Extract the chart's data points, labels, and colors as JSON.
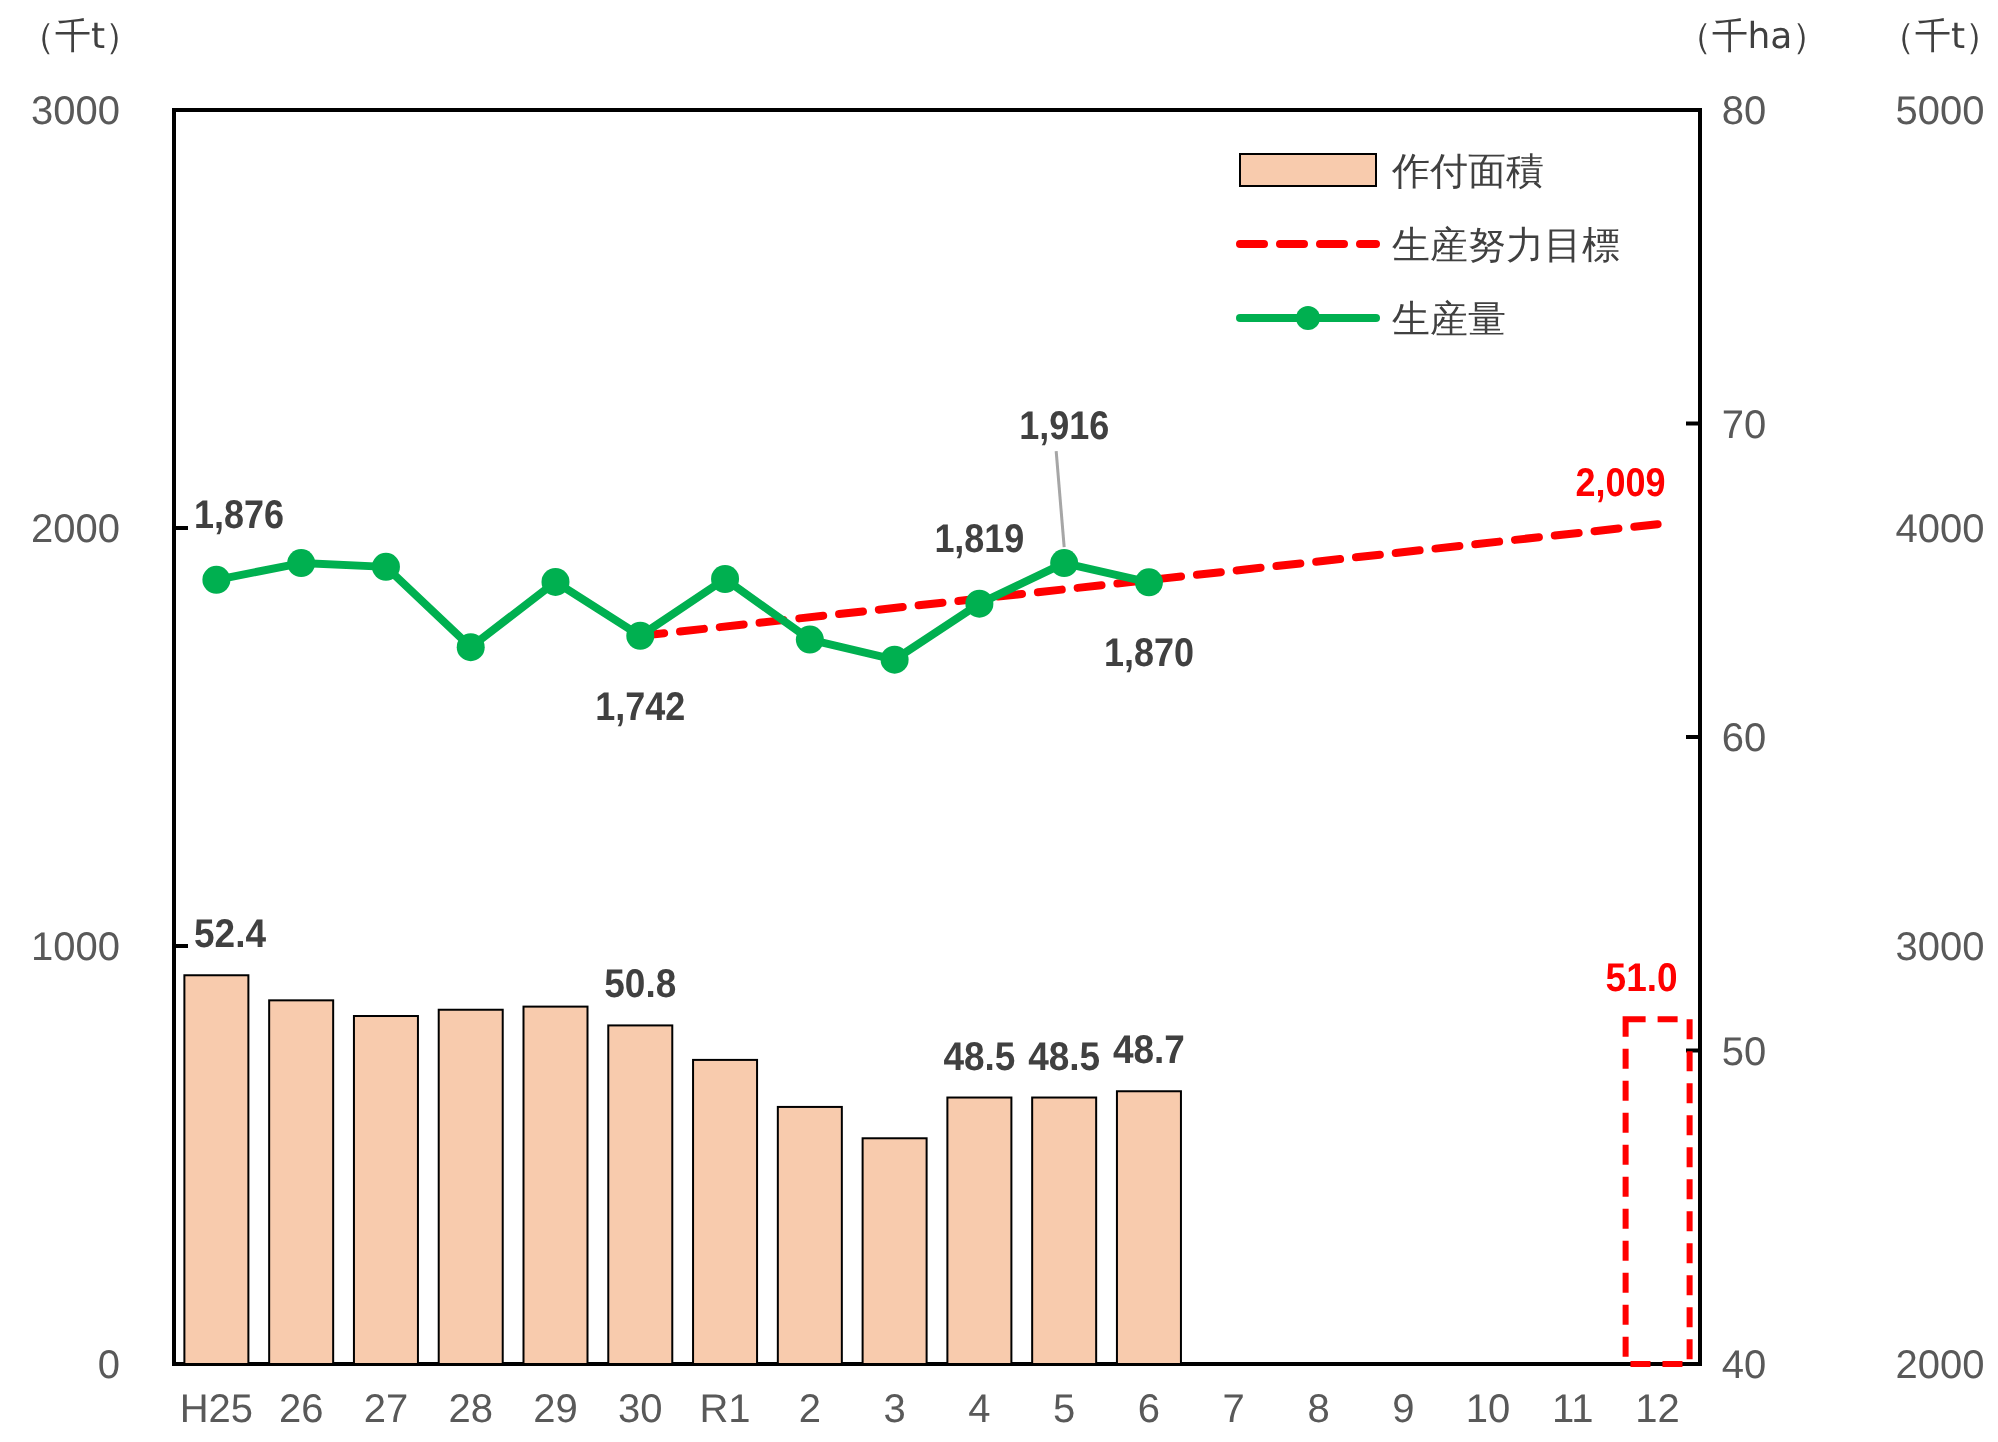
{
  "chart_data": {
    "type": "bar",
    "categories": [
      "H25",
      "26",
      "27",
      "28",
      "29",
      "30",
      "R1",
      "2",
      "3",
      "4",
      "5",
      "6",
      "7",
      "8",
      "9",
      "10",
      "11",
      "12"
    ],
    "ylabel": "（千t）",
    "y2label": "（千ha）",
    "y3label": "（千t）",
    "ylim": [
      0,
      3000
    ],
    "yticks": [
      0,
      1000,
      2000,
      3000
    ],
    "y2lim": [
      40,
      80
    ],
    "y2ticks": [
      40,
      50,
      60,
      70,
      80
    ],
    "y3lim": [
      2000,
      5000
    ],
    "y3ticks": [
      2000,
      3000,
      4000,
      5000
    ],
    "legend": "top right",
    "series": [
      {
        "name": "作付面積",
        "axis": "y2",
        "color": "#f8cbad",
        "values": [
          52.4,
          51.6,
          51.1,
          51.3,
          51.4,
          50.8,
          49.7,
          48.2,
          47.2,
          48.5,
          48.5,
          48.7,
          null,
          null,
          null,
          null,
          null,
          null
        ],
        "value_labels": [
          "52.4",
          null,
          null,
          null,
          null,
          "50.8",
          null,
          null,
          null,
          "48.5",
          "48.5",
          "48.7",
          null,
          null,
          null,
          null,
          null,
          null
        ]
      },
      {
        "axis": "y2",
        "color": "#ff0000",
        "line_style": "dashed",
        "values": [
          null,
          null,
          null,
          null,
          null,
          null,
          null,
          null,
          null,
          null,
          null,
          null,
          null,
          null,
          null,
          null,
          null,
          51.0
        ],
        "value_labels": [
          null,
          null,
          null,
          null,
          null,
          null,
          null,
          null,
          null,
          null,
          null,
          null,
          null,
          null,
          null,
          null,
          null,
          "51.0"
        ]
      },
      {
        "name": "生産努力目標",
        "type": "line",
        "color": "#ff0000",
        "line_style": "dashed",
        "marker": "none",
        "x": [
          "30",
          "12"
        ],
        "values": [
          1742,
          2009
        ],
        "value_labels": [
          null,
          "2,009"
        ]
      },
      {
        "name": "生産量",
        "type": "line",
        "color": "#00b050",
        "marker": "circle",
        "values": [
          1876,
          1916,
          1907,
          1715,
          1871,
          1742,
          1878,
          1733,
          1685,
          1819,
          1916,
          1870,
          null,
          null,
          null,
          null,
          null,
          null
        ],
        "value_labels": [
          "1,876",
          null,
          null,
          null,
          null,
          "1,742",
          null,
          null,
          null,
          "1,819",
          "1,916",
          "1,870",
          null,
          null,
          null,
          null,
          null,
          null
        ]
      }
    ]
  }
}
